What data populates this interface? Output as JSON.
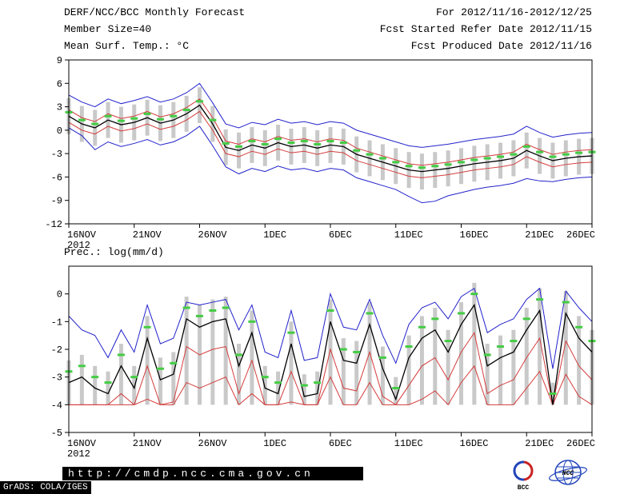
{
  "header": {
    "left": {
      "line1": "DERF/NCC/BCC Monthly Forecast",
      "line2": "Member Size=40",
      "line3": "Mean Surf. Temp.: °C"
    },
    "right": {
      "line1": "For 2012/11/16-2012/12/25",
      "line2": "Fcst Started Refer Date 2012/11/15",
      "line3": "Fcst Produced Date 2012/11/16"
    }
  },
  "footer": {
    "url": "http://cmdp.ncc.cma.gov.cn",
    "credit": "GrADS: COLA/IGES",
    "bcc_label": "BCC",
    "ncc_label": "NCC"
  },
  "chart_data": [
    {
      "type": "line",
      "title": "Mean Surf. Temp.: °C",
      "ylim": [
        -12,
        9
      ],
      "yticks": [
        9,
        6,
        3,
        0,
        -3,
        -6,
        -9,
        -12
      ],
      "xticks": [
        {
          "pos": 0,
          "label": "16NOV"
        },
        {
          "pos": 5,
          "label": "21NOV"
        },
        {
          "pos": 10,
          "label": "26NOV"
        },
        {
          "pos": 15,
          "label": "1DEC"
        },
        {
          "pos": 20,
          "label": "6DEC"
        },
        {
          "pos": 25,
          "label": "11DEC"
        },
        {
          "pos": 30,
          "label": "16DEC"
        },
        {
          "pos": 35,
          "label": "21DEC"
        },
        {
          "pos": 40,
          "label": "26DEC"
        }
      ],
      "year_label": "2012",
      "n_points": 41,
      "legend_position": "none",
      "grid": false,
      "series": [
        {
          "name": "member-spread",
          "type": "bar",
          "color": "#c9c9c9",
          "low": [
            -0.5,
            -1.5,
            -2.0,
            -1.0,
            -1.6,
            -1.3,
            -0.7,
            -1.4,
            -1.0,
            -0.2,
            0.9,
            -1.5,
            -4.5,
            -4.9,
            -4.2,
            -4.6,
            -3.9,
            -4.4,
            -4.2,
            -4.6,
            -4.2,
            -4.4,
            -5.4,
            -5.9,
            -6.4,
            -6.9,
            -7.4,
            -7.6,
            -7.4,
            -7.2,
            -6.9,
            -6.6,
            -6.4,
            -6.2,
            -5.9,
            -4.9,
            -5.6,
            -6.2,
            -5.9,
            -5.7,
            -5.6
          ],
          "high": [
            4.1,
            3.1,
            2.6,
            3.6,
            3.0,
            3.3,
            3.9,
            3.2,
            3.6,
            4.4,
            5.5,
            3.1,
            0.1,
            -0.3,
            0.4,
            0.0,
            0.7,
            0.2,
            0.4,
            0.0,
            0.4,
            0.2,
            -0.8,
            -1.3,
            -1.8,
            -2.3,
            -2.8,
            -3.0,
            -2.8,
            -2.6,
            -2.3,
            -2.0,
            -1.8,
            -1.6,
            -1.3,
            -0.3,
            -1.0,
            -1.6,
            -1.3,
            -1.1,
            -1.0
          ]
        },
        {
          "name": "upper-envelope",
          "type": "line",
          "color": "#2222cc",
          "width": 1,
          "values": [
            4.5,
            3.6,
            3.0,
            4.0,
            3.4,
            3.8,
            4.3,
            3.6,
            4.0,
            4.8,
            6.0,
            3.5,
            0.8,
            0.3,
            1.0,
            0.7,
            1.4,
            0.9,
            1.1,
            0.7,
            1.1,
            0.9,
            0.0,
            -0.5,
            -1.0,
            -1.5,
            -2.0,
            -2.2,
            -2.0,
            -1.8,
            -1.5,
            -1.2,
            -1.0,
            -0.8,
            -0.5,
            0.5,
            -0.3,
            -0.9,
            -0.6,
            -0.4,
            -0.3
          ]
        },
        {
          "name": "lower-envelope",
          "type": "line",
          "color": "#2222cc",
          "width": 1,
          "values": [
            0.3,
            -0.7,
            -2.5,
            -1.5,
            -2.1,
            -1.7,
            -1.2,
            -1.9,
            -1.5,
            -0.7,
            0.5,
            -2.0,
            -4.7,
            -5.6,
            -4.9,
            -5.3,
            -4.6,
            -5.1,
            -4.9,
            -5.3,
            -4.9,
            -5.1,
            -6.1,
            -6.6,
            -7.1,
            -7.6,
            -8.5,
            -9.3,
            -9.1,
            -8.4,
            -8.0,
            -7.6,
            -7.3,
            -7.1,
            -6.8,
            -6.2,
            -6.5,
            -6.6,
            -6.3,
            -6.1,
            -6.0
          ]
        },
        {
          "name": "upper-quartile",
          "type": "line",
          "color": "#d43c3c",
          "width": 1,
          "values": [
            2.6,
            1.6,
            1.1,
            2.1,
            1.5,
            1.8,
            2.4,
            1.7,
            2.1,
            2.9,
            4.0,
            1.6,
            -1.4,
            -1.8,
            -1.1,
            -1.5,
            -0.8,
            -1.3,
            -1.1,
            -1.5,
            -1.1,
            -1.3,
            -2.3,
            -2.8,
            -3.3,
            -3.8,
            -4.3,
            -4.5,
            -4.3,
            -4.1,
            -3.8,
            -3.5,
            -3.3,
            -3.1,
            -2.8,
            -1.8,
            -2.5,
            -3.1,
            -2.8,
            -2.6,
            -2.5
          ]
        },
        {
          "name": "lower-quartile",
          "type": "line",
          "color": "#d43c3c",
          "width": 1,
          "values": [
            1.0,
            0.0,
            -0.5,
            0.5,
            -0.1,
            0.2,
            0.8,
            0.1,
            0.5,
            1.3,
            2.4,
            0.0,
            -3.0,
            -3.4,
            -2.7,
            -3.1,
            -2.4,
            -2.9,
            -2.7,
            -3.1,
            -2.7,
            -2.9,
            -3.9,
            -4.4,
            -4.9,
            -5.4,
            -5.9,
            -6.1,
            -5.9,
            -5.7,
            -5.4,
            -5.1,
            -4.9,
            -4.7,
            -4.4,
            -3.4,
            -4.1,
            -4.7,
            -4.4,
            -4.2,
            -4.1
          ]
        },
        {
          "name": "ensemble-mean",
          "type": "line",
          "color": "#000000",
          "width": 1.3,
          "values": [
            1.8,
            0.8,
            0.3,
            1.3,
            0.7,
            1.0,
            1.6,
            0.9,
            1.3,
            2.1,
            3.2,
            0.8,
            -2.2,
            -2.6,
            -1.9,
            -2.3,
            -1.6,
            -2.1,
            -1.9,
            -2.3,
            -1.9,
            -2.1,
            -3.1,
            -3.6,
            -4.1,
            -4.6,
            -5.1,
            -5.3,
            -5.1,
            -4.9,
            -4.6,
            -4.3,
            -4.1,
            -3.9,
            -3.6,
            -2.6,
            -3.3,
            -3.9,
            -3.6,
            -3.4,
            -3.3
          ]
        },
        {
          "name": "highlight-dashes",
          "type": "dash",
          "color": "#44cc44",
          "values": [
            2.3,
            1.3,
            0.8,
            1.8,
            1.2,
            1.5,
            2.1,
            1.4,
            1.8,
            2.6,
            3.7,
            1.3,
            -1.7,
            -2.1,
            -1.4,
            -1.8,
            -1.1,
            -1.6,
            -1.4,
            -1.8,
            -1.4,
            -1.6,
            -2.6,
            -3.1,
            -3.6,
            -4.1,
            -4.6,
            -4.8,
            -4.6,
            -4.4,
            -4.1,
            -3.8,
            -3.6,
            -3.4,
            -3.1,
            -2.1,
            -2.8,
            -3.4,
            -3.1,
            -2.9,
            -2.8
          ]
        }
      ]
    },
    {
      "type": "line",
      "title": "Prec.: log(mm/d)",
      "ylim": [
        -5,
        1
      ],
      "yticks": [
        0,
        -1,
        -2,
        -3,
        -4,
        -5
      ],
      "xticks": [
        {
          "pos": 0,
          "label": "16NOV"
        },
        {
          "pos": 5,
          "label": "21NOV"
        },
        {
          "pos": 10,
          "label": "26NOV"
        },
        {
          "pos": 15,
          "label": "1DEC"
        },
        {
          "pos": 20,
          "label": "6DEC"
        },
        {
          "pos": 25,
          "label": "11DEC"
        },
        {
          "pos": 30,
          "label": "16DEC"
        },
        {
          "pos": 35,
          "label": "21DEC"
        },
        {
          "pos": 40,
          "label": "26DEC"
        }
      ],
      "year_label": "2012",
      "n_points": 41,
      "legend_position": "none",
      "grid": false,
      "series": [
        {
          "name": "member-spread",
          "type": "bar",
          "color": "#c9c9c9",
          "low": [
            -4.0,
            -4.0,
            -4.0,
            -4.0,
            -4.0,
            -4.0,
            -4.0,
            -4.0,
            -4.0,
            -4.0,
            -4.0,
            -4.0,
            -4.0,
            -4.0,
            -4.0,
            -4.0,
            -4.0,
            -4.0,
            -4.0,
            -4.0,
            -4.0,
            -4.0,
            -4.0,
            -4.0,
            -4.0,
            -4.0,
            -4.0,
            -4.0,
            -4.0,
            -4.0,
            -4.0,
            -4.0,
            -4.0,
            -4.0,
            -4.0,
            -4.0,
            -4.0,
            -4.0,
            -4.0,
            -4.0,
            -4.0
          ],
          "high": [
            -2.4,
            -2.2,
            -2.6,
            -2.8,
            -1.8,
            -2.6,
            -0.8,
            -2.3,
            -2.1,
            -0.1,
            -0.4,
            -0.2,
            -0.1,
            -1.8,
            -0.6,
            -2.6,
            -2.8,
            -1.0,
            -2.9,
            -2.8,
            -0.2,
            -1.6,
            -1.7,
            -0.3,
            -1.9,
            -3.0,
            -1.5,
            -0.8,
            -0.5,
            -1.3,
            -0.3,
            0.4,
            -1.8,
            -1.5,
            -1.3,
            -0.5,
            0.2,
            -3.2,
            0.1,
            -0.8,
            -1.3
          ]
        },
        {
          "name": "upper-envelope",
          "type": "line",
          "color": "#2222cc",
          "width": 1,
          "values": [
            -0.8,
            -1.3,
            -1.5,
            -2.3,
            -1.3,
            -2.1,
            -0.4,
            -1.8,
            -1.6,
            -0.3,
            -0.4,
            -0.3,
            -0.2,
            -1.3,
            -0.4,
            -2.1,
            -2.3,
            -0.6,
            -2.4,
            -2.3,
            0.0,
            -1.2,
            -1.3,
            -0.2,
            -1.5,
            -2.5,
            -1.1,
            -0.5,
            -0.3,
            -0.9,
            -0.1,
            0.2,
            -1.4,
            -1.1,
            -0.9,
            -0.2,
            0.2,
            -2.7,
            0.1,
            -0.5,
            -1.0
          ]
        },
        {
          "name": "lower-quartile",
          "type": "line",
          "color": "#d43c3c",
          "width": 1,
          "values": [
            -4.0,
            -4.0,
            -4.0,
            -4.0,
            -3.6,
            -4.0,
            -2.6,
            -4.0,
            -3.9,
            -1.9,
            -2.2,
            -2.0,
            -1.9,
            -3.6,
            -2.4,
            -4.0,
            -4.0,
            -2.8,
            -4.0,
            -4.0,
            -2.0,
            -3.4,
            -3.5,
            -2.1,
            -3.7,
            -4.0,
            -3.3,
            -2.6,
            -2.3,
            -3.1,
            -2.1,
            -1.4,
            -3.6,
            -3.3,
            -3.1,
            -2.3,
            -1.6,
            -4.0,
            -1.7,
            -2.6,
            -3.1
          ]
        },
        {
          "name": "lower-envelope",
          "type": "line",
          "color": "#d43c3c",
          "width": 1,
          "values": [
            -4.0,
            -4.0,
            -4.0,
            -4.0,
            -4.0,
            -4.0,
            -3.8,
            -4.0,
            -4.0,
            -3.2,
            -3.4,
            -3.2,
            -3.0,
            -4.0,
            -3.6,
            -4.0,
            -4.0,
            -3.9,
            -4.0,
            -4.0,
            -3.0,
            -4.0,
            -4.0,
            -3.2,
            -4.0,
            -4.0,
            -4.0,
            -3.8,
            -3.5,
            -4.0,
            -3.2,
            -2.6,
            -4.0,
            -4.0,
            -4.0,
            -3.4,
            -2.8,
            -4.0,
            -2.9,
            -3.7,
            -4.0
          ]
        },
        {
          "name": "ensemble-mean",
          "type": "line",
          "color": "#000000",
          "width": 1.3,
          "values": [
            -3.2,
            -3.0,
            -3.4,
            -3.6,
            -2.6,
            -3.4,
            -1.6,
            -3.1,
            -2.9,
            -0.9,
            -1.2,
            -1.0,
            -0.9,
            -2.6,
            -1.4,
            -3.4,
            -3.6,
            -1.8,
            -3.7,
            -3.6,
            -1.0,
            -2.4,
            -2.5,
            -1.1,
            -2.7,
            -3.8,
            -2.3,
            -1.6,
            -1.3,
            -2.1,
            -1.1,
            -0.4,
            -2.6,
            -2.3,
            -2.1,
            -1.3,
            -0.6,
            -4.0,
            -0.7,
            -1.6,
            -2.1
          ]
        },
        {
          "name": "highlight-dashes",
          "type": "dash",
          "color": "#44cc44",
          "values": [
            -2.8,
            -2.6,
            -3.0,
            -3.2,
            -2.2,
            -3.0,
            -1.2,
            -2.7,
            -2.5,
            -0.5,
            -0.8,
            -0.6,
            -0.5,
            -2.2,
            -1.0,
            -3.0,
            -3.2,
            -1.4,
            -3.3,
            -3.2,
            -0.6,
            -2.0,
            -2.1,
            -0.7,
            -2.3,
            -3.4,
            -1.9,
            -1.2,
            -0.9,
            -1.7,
            -0.7,
            0.0,
            -2.2,
            -1.9,
            -1.7,
            -0.9,
            -0.2,
            -3.6,
            -0.3,
            -1.2,
            -1.7
          ]
        }
      ]
    }
  ]
}
